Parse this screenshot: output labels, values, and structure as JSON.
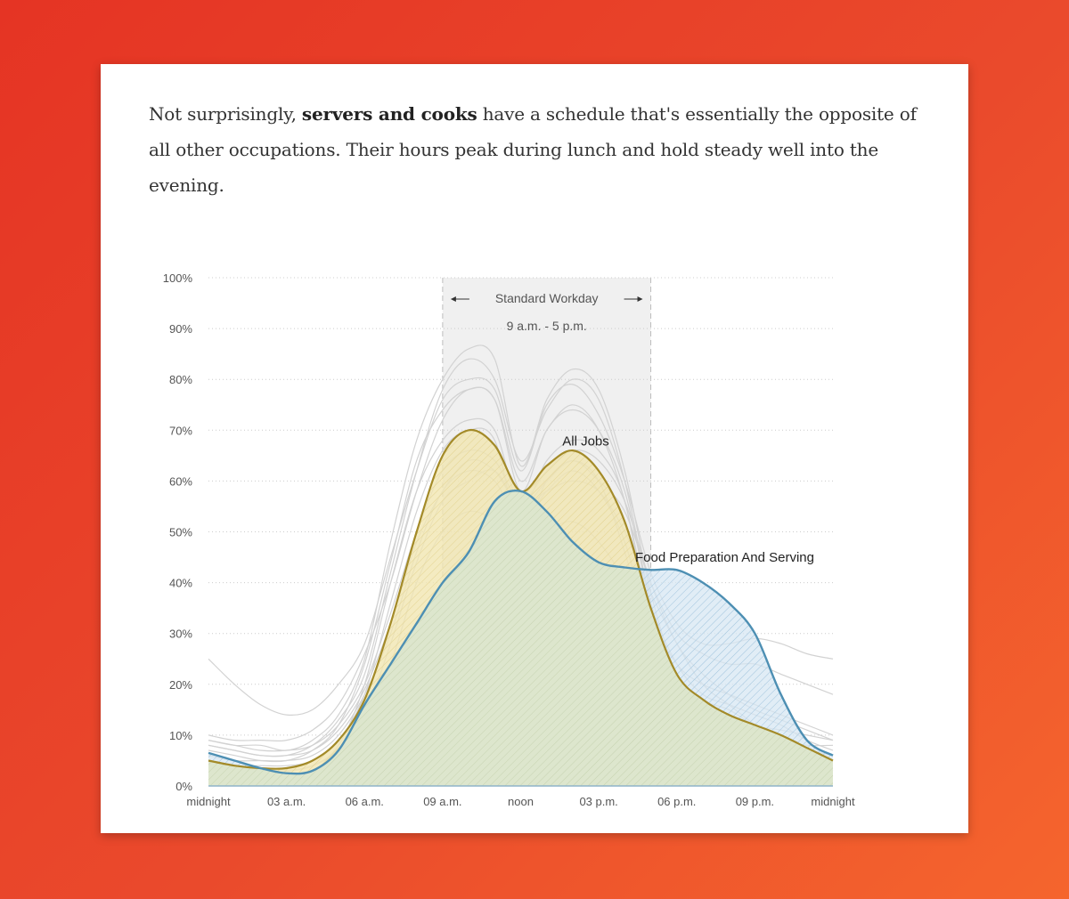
{
  "intro": {
    "before": "Not surprisingly, ",
    "bold": "servers and cooks",
    "after": " have a schedule that's essentially the opposite of all other occupations. Their hours peak during lunch and hold steady well into the evening."
  },
  "chart_data": {
    "type": "area",
    "x_unit": "hour of day",
    "xlim": [
      0,
      24
    ],
    "ylim": [
      0,
      100
    ],
    "x_ticks": [
      0,
      3,
      6,
      9,
      12,
      15,
      18,
      21,
      24
    ],
    "x_tick_labels": [
      "midnight",
      "03 a.m.",
      "06 a.m.",
      "09 a.m.",
      "noon",
      "03 p.m.",
      "06 p.m.",
      "09 p.m.",
      "midnight"
    ],
    "y_ticks": [
      0,
      10,
      20,
      30,
      40,
      50,
      60,
      70,
      80,
      90,
      100
    ],
    "y_tick_labels": [
      "0%",
      "10%",
      "20%",
      "30%",
      "40%",
      "50%",
      "60%",
      "70%",
      "80%",
      "90%",
      "100%"
    ],
    "grid": "horizontal dotted",
    "band": {
      "x_start": 9,
      "x_end": 17,
      "label": "Standard Workday",
      "sublabel": "9 a.m. - 5 p.m."
    },
    "series": [
      {
        "name": "All Jobs",
        "color": "#a38a28",
        "fill": "#f1e7b6",
        "x": [
          0,
          1,
          2,
          3,
          4,
          5,
          6,
          7,
          8,
          9,
          10,
          11,
          12,
          13,
          14,
          15,
          16,
          17,
          18,
          19,
          20,
          21,
          22,
          23,
          24
        ],
        "y": [
          5,
          4,
          3.5,
          3.5,
          5,
          9,
          17,
          32,
          50,
          65,
          70,
          67,
          58,
          63,
          66,
          62,
          52,
          35,
          22,
          17,
          14,
          12,
          10,
          7.5,
          5
        ]
      },
      {
        "name": "Food Preparation And Serving",
        "color": "#4d8fb3",
        "fill": "#cfe2f0",
        "x": [
          0,
          1,
          2,
          3,
          4,
          5,
          6,
          7,
          8,
          9,
          10,
          11,
          12,
          13,
          14,
          15,
          16,
          17,
          18,
          19,
          20,
          21,
          22,
          23,
          24
        ],
        "y": [
          6.5,
          5,
          3.5,
          2.5,
          3,
          7,
          16,
          24,
          32,
          40,
          46,
          56,
          58,
          54,
          48,
          44,
          43,
          42.5,
          42.5,
          40,
          36,
          30,
          18,
          9,
          6
        ]
      }
    ],
    "background_series": [
      [
        25,
        20,
        16,
        14,
        15,
        20,
        28,
        45,
        62,
        76,
        80,
        78,
        62,
        75,
        79,
        73,
        60,
        42,
        32,
        28,
        28,
        29,
        28,
        26,
        25
      ],
      [
        9,
        8,
        8,
        7,
        9,
        14,
        25,
        48,
        68,
        80,
        86,
        84,
        63,
        76,
        82,
        78,
        62,
        38,
        22,
        17,
        15,
        12,
        11,
        10,
        9
      ],
      [
        8,
        7,
        6,
        6,
        8,
        13,
        22,
        42,
        62,
        78,
        84,
        80,
        64,
        74,
        80,
        76,
        60,
        36,
        20,
        15,
        12,
        10,
        9,
        8,
        8
      ],
      [
        10,
        9,
        9,
        9,
        11,
        16,
        26,
        40,
        58,
        72,
        78,
        76,
        60,
        70,
        75,
        70,
        56,
        34,
        24,
        20,
        18,
        16,
        14,
        12,
        10
      ],
      [
        4,
        4,
        3,
        3,
        4,
        8,
        20,
        40,
        58,
        68,
        72,
        70,
        55,
        64,
        68,
        66,
        56,
        30,
        18,
        13,
        10,
        8,
        6,
        5,
        4
      ],
      [
        6,
        5,
        5,
        5,
        6,
        10,
        18,
        30,
        46,
        58,
        62,
        60,
        52,
        58,
        62,
        58,
        48,
        30,
        20,
        15,
        12,
        10,
        8,
        7,
        6
      ],
      [
        7,
        6,
        5,
        5,
        7,
        12,
        24,
        44,
        64,
        74,
        78,
        76,
        58,
        70,
        74,
        70,
        58,
        36,
        24,
        18,
        16,
        14,
        12,
        9,
        7
      ],
      [
        3,
        3,
        3,
        3,
        4,
        7,
        14,
        28,
        44,
        56,
        60,
        62,
        55,
        58,
        60,
        58,
        50,
        38,
        28,
        20,
        16,
        12,
        8,
        5,
        3
      ],
      [
        5,
        4,
        4,
        4,
        5,
        9,
        18,
        36,
        54,
        66,
        70,
        68,
        50,
        60,
        64,
        60,
        46,
        28,
        16,
        12,
        10,
        9,
        8,
        6,
        5
      ],
      [
        9,
        8,
        7,
        7,
        8,
        12,
        20,
        34,
        50,
        62,
        66,
        64,
        56,
        62,
        66,
        64,
        56,
        40,
        28,
        22,
        18,
        15,
        13,
        11,
        9
      ],
      [
        2,
        2,
        2,
        2,
        3,
        6,
        12,
        24,
        40,
        50,
        54,
        52,
        46,
        50,
        52,
        48,
        40,
        26,
        16,
        12,
        10,
        8,
        6,
        4,
        2
      ],
      [
        8,
        7,
        6,
        6,
        7,
        11,
        19,
        32,
        48,
        58,
        64,
        62,
        55,
        60,
        64,
        60,
        54,
        40,
        30,
        26,
        24,
        24,
        22,
        20,
        18
      ]
    ]
  }
}
